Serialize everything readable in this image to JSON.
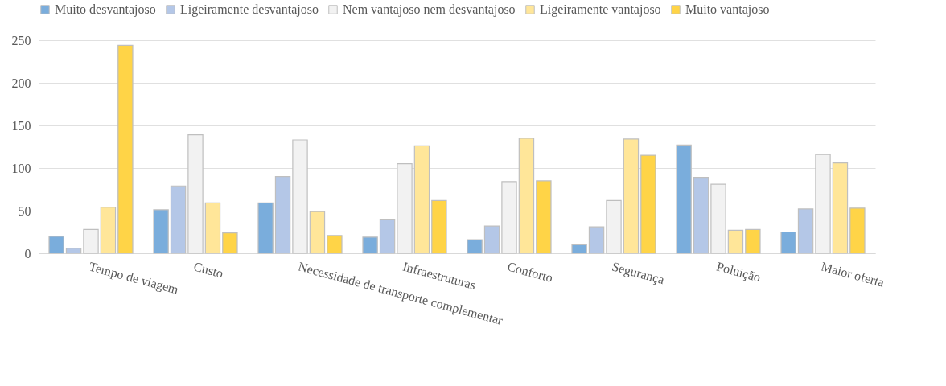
{
  "chart_data": {
    "type": "bar",
    "categories": [
      "Tempo de viagem",
      "Custo",
      "Necessidade de transporte complementar",
      "Infraestruturas",
      "Conforto",
      "Segurança",
      "Poluição",
      "Maior oferta"
    ],
    "series": [
      {
        "name": "Muito desvantajoso",
        "color": "#7aaddc",
        "values": [
          20,
          51,
          59,
          19,
          16,
          10,
          127,
          25
        ]
      },
      {
        "name": "Ligeiramente desvantajoso",
        "color": "#b4c7e7",
        "values": [
          6,
          79,
          90,
          40,
          32,
          31,
          89,
          52
        ]
      },
      {
        "name": "Nem vantajoso nem desvantajoso",
        "color": "#f2f2f2",
        "values": [
          28,
          139,
          133,
          105,
          84,
          62,
          81,
          116
        ]
      },
      {
        "name": "Ligeiramente vantajoso",
        "color": "#ffe699",
        "values": [
          54,
          59,
          49,
          126,
          135,
          134,
          27,
          106
        ]
      },
      {
        "name": "Muito vantajoso",
        "color": "#ffd447",
        "values": [
          244,
          24,
          21,
          62,
          85,
          115,
          28,
          53
        ]
      }
    ],
    "ylim": [
      0,
      250
    ],
    "yticks": [
      0,
      50,
      100,
      150,
      200,
      250
    ],
    "grid": "y",
    "legend": "top"
  }
}
